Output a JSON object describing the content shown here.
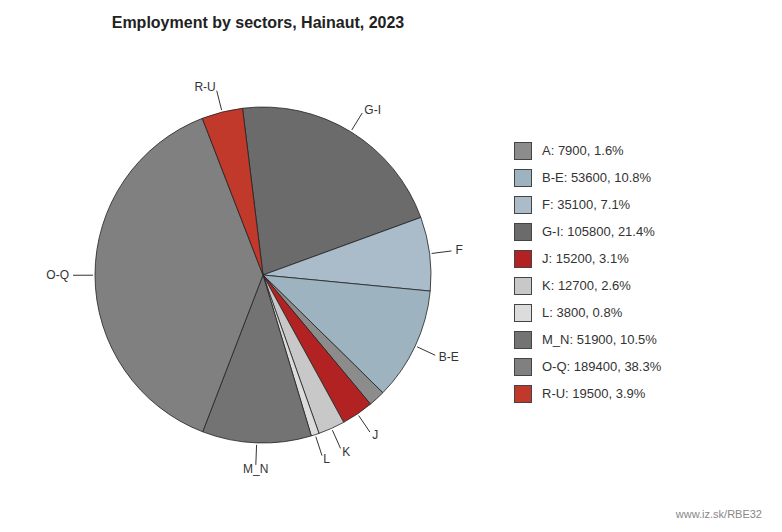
{
  "chart_data": {
    "type": "pie",
    "title": "Employment by sectors, Hainaut, 2023",
    "categories": [
      "G-I",
      "F",
      "B-E",
      "A",
      "J",
      "K",
      "L",
      "M_N",
      "O-Q",
      "R-U"
    ],
    "values": [
      105800,
      35100,
      53600,
      7900,
      15200,
      12700,
      3800,
      51900,
      189400,
      19500
    ],
    "colors": [
      "#6b6b6b",
      "#aabcca",
      "#9db3bf",
      "#8c8c8c",
      "#b22222",
      "#c8c8c8",
      "#dcdcdc",
      "#737373",
      "#808080",
      "#c0392b"
    ],
    "slice_labels": [
      "G-I",
      "F",
      "B-E",
      null,
      "J",
      "K",
      "L",
      "M_N",
      "O-Q",
      "R-U"
    ],
    "legend": "right",
    "legend_entries": [
      {
        "name": "A",
        "label": "A: 7900, 1.6%"
      },
      {
        "name": "B-E",
        "label": "B-E: 53600, 10.8%"
      },
      {
        "name": "F",
        "label": "F: 35100, 7.1%"
      },
      {
        "name": "G-I",
        "label": "G-I: 105800, 21.4%"
      },
      {
        "name": "J",
        "label": "J: 15200, 3.1%"
      },
      {
        "name": "K",
        "label": "K: 12700, 2.6%"
      },
      {
        "name": "L",
        "label": "L: 3800, 0.8%"
      },
      {
        "name": "M_N",
        "label": "M_N: 51900, 10.5%"
      },
      {
        "name": "O-Q",
        "label": "O-Q: 189400, 38.3%"
      },
      {
        "name": "R-U",
        "label": "R-U: 19500, 3.9%"
      }
    ],
    "annotations": [
      "www.iz.sk/RBE32"
    ]
  }
}
